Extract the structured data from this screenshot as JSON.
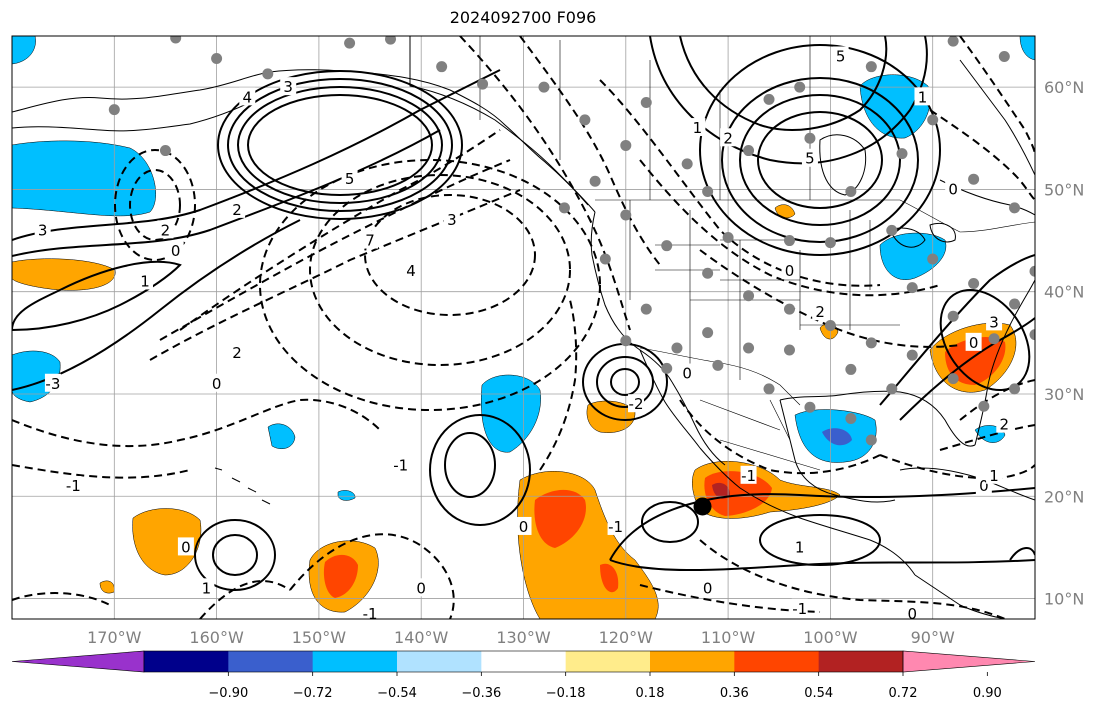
{
  "title": "2024092700 F096",
  "map": {
    "lon_range": [
      -180,
      -80
    ],
    "lat_range": [
      8,
      65
    ],
    "lon_ticks": [
      {
        "value": -170,
        "label": "170°W"
      },
      {
        "value": -160,
        "label": "160°W"
      },
      {
        "value": -150,
        "label": "150°W"
      },
      {
        "value": -140,
        "label": "140°W"
      },
      {
        "value": -130,
        "label": "130°W"
      },
      {
        "value": -120,
        "label": "120°W"
      },
      {
        "value": -110,
        "label": "110°W"
      },
      {
        "value": -100,
        "label": "100°W"
      },
      {
        "value": -90,
        "label": "90°W"
      }
    ],
    "lat_ticks": [
      {
        "value": 60,
        "label": "60°N"
      },
      {
        "value": 50,
        "label": "50°N"
      },
      {
        "value": 40,
        "label": "40°N"
      },
      {
        "value": 30,
        "label": "30°N"
      },
      {
        "value": 20,
        "label": "20°N"
      },
      {
        "value": 10,
        "label": "10°N"
      }
    ],
    "storm_marker": {
      "lon": -112.5,
      "lat": 19.0
    },
    "contour_labels": [
      {
        "text": "5",
        "lon": -147,
        "lat": 51
      },
      {
        "text": "4",
        "lon": -157,
        "lat": 59
      },
      {
        "text": "3",
        "lon": -153,
        "lat": 60
      },
      {
        "text": "2",
        "lon": -158,
        "lat": 48
      },
      {
        "text": "1",
        "lon": -167,
        "lat": 41
      },
      {
        "text": "-3",
        "lon": -176,
        "lat": 31
      },
      {
        "text": "3",
        "lon": -177,
        "lat": 46
      },
      {
        "text": "2",
        "lon": -165,
        "lat": 46
      },
      {
        "text": "0",
        "lon": -164,
        "lat": 44
      },
      {
        "text": "2",
        "lon": -158,
        "lat": 34
      },
      {
        "text": "0",
        "lon": -160,
        "lat": 31
      },
      {
        "text": "-1",
        "lon": -174,
        "lat": 21
      },
      {
        "text": "4",
        "lon": -141,
        "lat": 42
      },
      {
        "text": "3",
        "lon": -137,
        "lat": 47
      },
      {
        "text": "7",
        "lon": -145,
        "lat": 45
      },
      {
        "text": "0",
        "lon": -163,
        "lat": 15
      },
      {
        "text": "1",
        "lon": -161,
        "lat": 11
      },
      {
        "text": "-1",
        "lon": -145,
        "lat": 8.5
      },
      {
        "text": "0",
        "lon": -140,
        "lat": 11
      },
      {
        "text": "-1",
        "lon": -142,
        "lat": 23
      },
      {
        "text": "0",
        "lon": -130,
        "lat": 17
      },
      {
        "text": "-2",
        "lon": -119,
        "lat": 29
      },
      {
        "text": "0",
        "lon": -114,
        "lat": 32
      },
      {
        "text": "-1",
        "lon": -121,
        "lat": 17
      },
      {
        "text": "0",
        "lon": -112,
        "lat": 11
      },
      {
        "text": "1",
        "lon": -103,
        "lat": 15
      },
      {
        "text": "-1",
        "lon": -103,
        "lat": 9
      },
      {
        "text": "0",
        "lon": -92,
        "lat": 8.5
      },
      {
        "text": "0",
        "lon": -104,
        "lat": 42
      },
      {
        "text": "2",
        "lon": -101,
        "lat": 38
      },
      {
        "text": "0",
        "lon": -85,
        "lat": 21
      },
      {
        "text": "1",
        "lon": -84,
        "lat": 22
      },
      {
        "text": "5",
        "lon": -99,
        "lat": 63
      },
      {
        "text": "1",
        "lon": -113,
        "lat": 56
      },
      {
        "text": "2",
        "lon": -110,
        "lat": 55
      },
      {
        "text": "5",
        "lon": -102,
        "lat": 53
      },
      {
        "text": "0",
        "lon": -88,
        "lat": 50
      },
      {
        "text": "1",
        "lon": -91,
        "lat": 59
      },
      {
        "text": "0",
        "lon": -86,
        "lat": 35
      },
      {
        "text": "3",
        "lon": -84,
        "lat": 37
      },
      {
        "text": "2",
        "lon": -83,
        "lat": 27
      },
      {
        "text": "-1",
        "lon": -108,
        "lat": 22
      }
    ]
  },
  "colorbar": {
    "ticks": [
      "−0.90",
      "−0.72",
      "−0.54",
      "−0.36",
      "−0.18",
      "0.18",
      "0.36",
      "0.54",
      "0.72",
      "0.90"
    ],
    "colors": [
      "#9932CC",
      "#00008B",
      "#3A5FCD",
      "#00BFFF",
      "#B0E2FF",
      "#FFFFFF",
      "#FFEC8B",
      "#FFA500",
      "#FF4500",
      "#B22222",
      "#FF88B0"
    ]
  },
  "colors": {
    "dot": "#808080",
    "axis_label": "#808080",
    "grid": "#a0a0a0"
  }
}
